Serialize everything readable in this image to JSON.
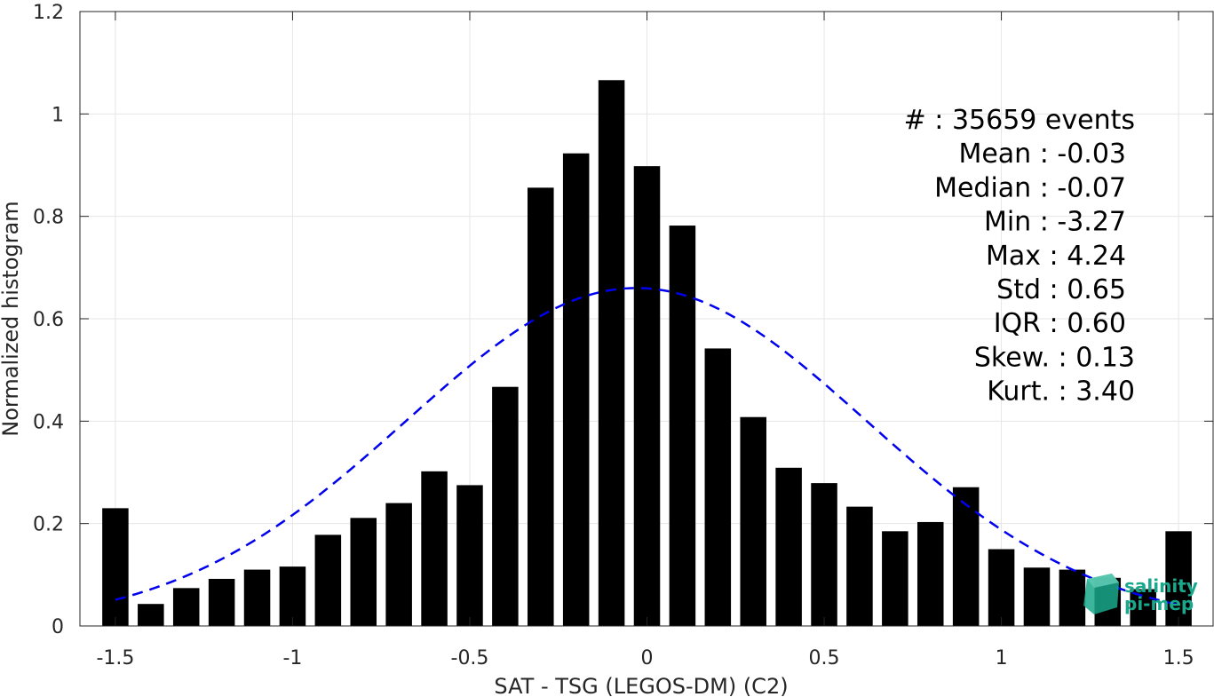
{
  "chart_data": {
    "type": "bar",
    "xlabel": "SAT - TSG (LEGOS-DM) (C2)",
    "ylabel": "Normalized histogram",
    "xlim": [
      -1.6,
      1.6
    ],
    "ylim": [
      0,
      1.2
    ],
    "xticks": [
      -1.5,
      -1,
      -0.5,
      0,
      0.5,
      1,
      1.5
    ],
    "xtick_labels": [
      "-1.5",
      "-1",
      "-0.5",
      "0",
      "0.5",
      "1",
      "1.5"
    ],
    "yticks": [
      0,
      0.2,
      0.4,
      0.6,
      0.8,
      1,
      1.2
    ],
    "ytick_labels": [
      "0",
      "0.2",
      "0.4",
      "0.6",
      "0.8",
      "1",
      "1.2"
    ],
    "grid": true,
    "bar_color": "#000000",
    "bin_width": 0.1,
    "bins": [
      -1.5,
      -1.4,
      -1.3,
      -1.2,
      -1.1,
      -1.0,
      -0.9,
      -0.8,
      -0.7,
      -0.6,
      -0.5,
      -0.4,
      -0.3,
      -0.2,
      -0.1,
      0.0,
      0.1,
      0.2,
      0.3,
      0.4,
      0.5,
      0.6,
      0.7,
      0.8,
      0.9,
      1.0,
      1.1,
      1.2,
      1.3,
      1.4,
      1.5
    ],
    "values": [
      0.23,
      0.043,
      0.074,
      0.092,
      0.11,
      0.116,
      0.178,
      0.211,
      0.24,
      0.302,
      0.275,
      0.467,
      0.856,
      0.923,
      1.066,
      0.898,
      0.782,
      0.542,
      0.408,
      0.309,
      0.279,
      0.233,
      0.185,
      0.203,
      0.271,
      0.15,
      0.114,
      0.11,
      0.094,
      0.072,
      0.185
    ],
    "fit_curve": {
      "style": "dashed",
      "color": "#0000ee",
      "mean": -0.03,
      "std": 0.65,
      "peak": 0.66,
      "x_range": [
        -1.5,
        1.5
      ]
    },
    "annotations": [
      "#  : 35659 events",
      "Mean : -0.03",
      "Median : -0.07",
      "Min : -3.27",
      "Max : 4.24",
      "Std : 0.65",
      "IQR : 0.60",
      "Skew. : 0.13",
      "Kurt. : 3.40"
    ]
  },
  "logo": {
    "line1": "salinity",
    "line2": "pi-mep",
    "color": "#1aa88c"
  }
}
